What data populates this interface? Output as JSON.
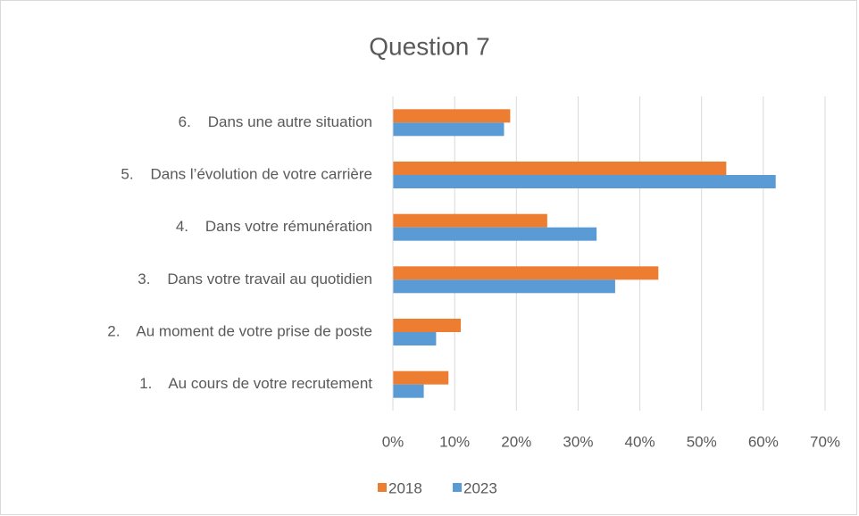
{
  "chart_data": {
    "type": "bar",
    "orientation": "horizontal",
    "title": "Question 7",
    "categories": [
      "6.    Dans une autre situation",
      "5.    Dans l’évolution de votre carrière",
      "4.    Dans votre rémunération",
      "3.    Dans votre travail au quotidien",
      "2.    Au moment de votre prise de poste",
      "1.    Au cours de votre recrutement"
    ],
    "series": [
      {
        "name": "2018",
        "color": "#ed7d31",
        "values": [
          19,
          54,
          25,
          43,
          11,
          9
        ]
      },
      {
        "name": "2023",
        "color": "#5b9bd5",
        "values": [
          18,
          62,
          33,
          36,
          7,
          5
        ]
      }
    ],
    "xlim": [
      0,
      70
    ],
    "xticks": [
      {
        "value": 0,
        "label": "0%"
      },
      {
        "value": 10,
        "label": "10%"
      },
      {
        "value": 20,
        "label": "20%"
      },
      {
        "value": 30,
        "label": "30%"
      },
      {
        "value": 40,
        "label": "40%"
      },
      {
        "value": 50,
        "label": "50%"
      },
      {
        "value": 60,
        "label": "60%"
      },
      {
        "value": 70,
        "label": "70%"
      }
    ],
    "grid": true,
    "legend": "bottom"
  }
}
